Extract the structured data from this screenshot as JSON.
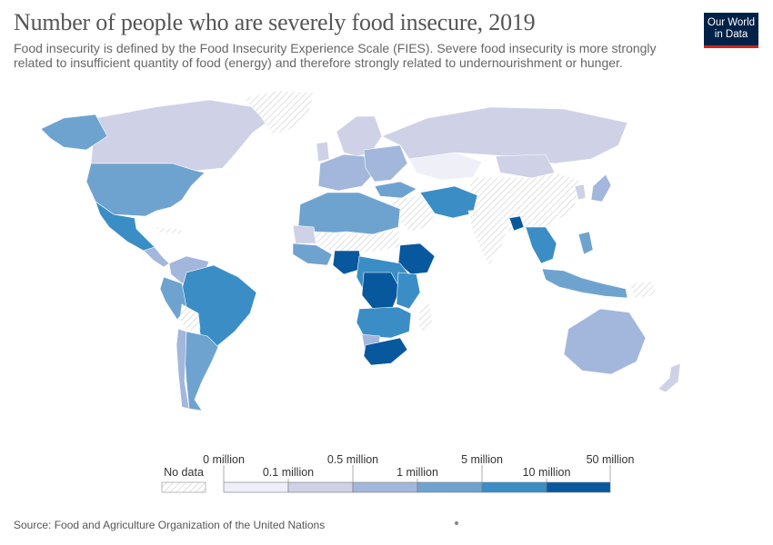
{
  "title": "Number of people who are severely food insecure, 2019",
  "subtitle": "Food insecurity is defined by the Food Insecurity Experience Scale (FIES). Severe food insecurity is more strongly related to insufficient quantity of food (energy) and therefore strongly related to undernourishment or hunger.",
  "logo": {
    "line1": "Our World",
    "line2": "in Data",
    "bg": "#002147",
    "accent": "#ce261e"
  },
  "legend": {
    "no_data_label": "No data",
    "bins": [
      {
        "label": "0 million",
        "color": "#eeeff7"
      },
      {
        "label": "0.1 million",
        "color": "#cfd1e6"
      },
      {
        "label": "0.5 million",
        "color": "#a3b7dc"
      },
      {
        "label": "1 million",
        "color": "#6fa3cf"
      },
      {
        "label": "5 million",
        "color": "#3a8ec5"
      },
      {
        "label": "10 million",
        "color": "#08589e"
      },
      {
        "label": "50 million",
        "color": ""
      }
    ]
  },
  "colors": {
    "no_data": "hatched",
    "bin1": "#eeeff7",
    "bin2": "#cfd1e6",
    "bin3": "#a3b7dc",
    "bin4": "#6fa3cf",
    "bin5": "#3a8ec5",
    "bin6": "#08589e"
  },
  "source": "Source: Food and Agriculture Organization of the United Nations"
}
